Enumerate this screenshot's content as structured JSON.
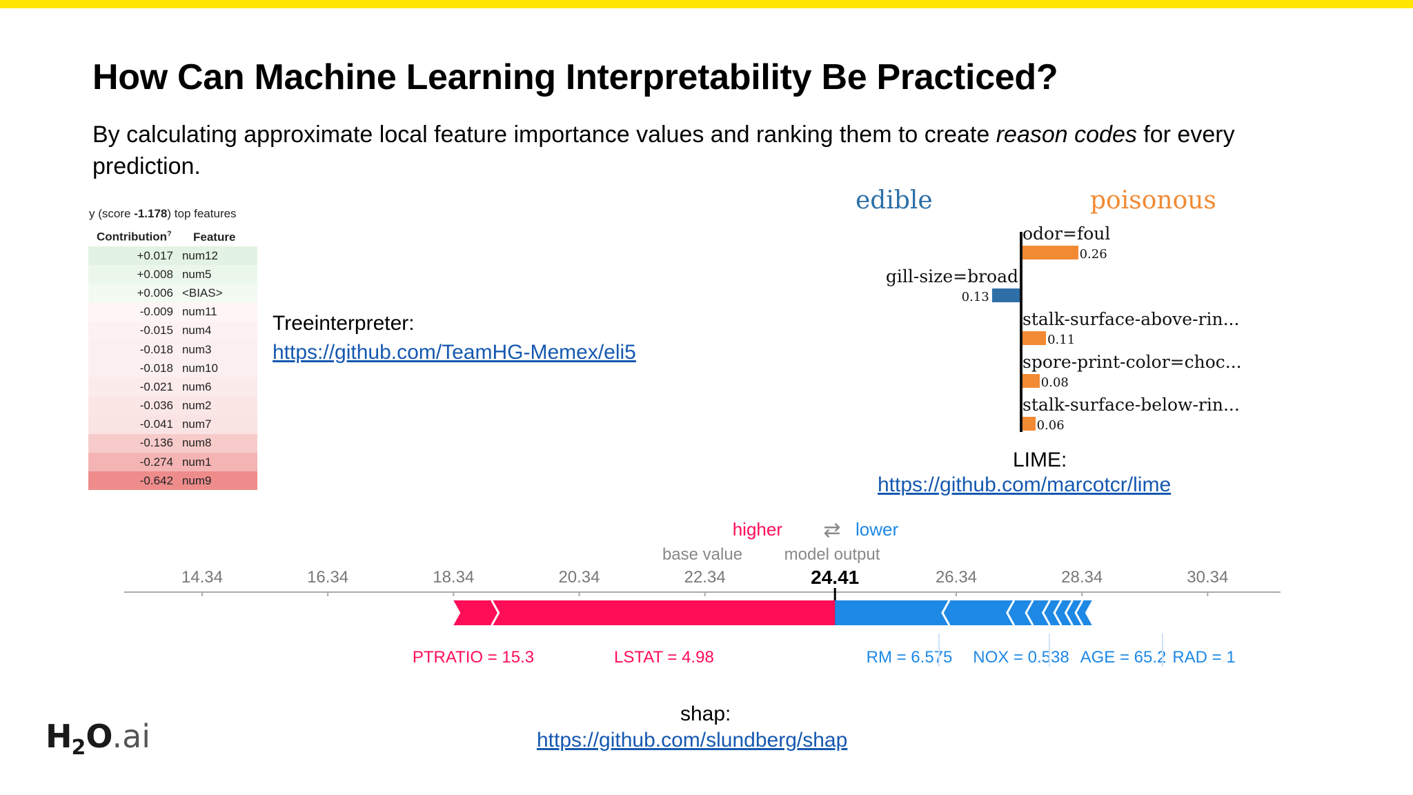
{
  "slide": {
    "title": "How Can Machine Learning Interpretability Be Practiced?",
    "subtitle_before": "By calculating approximate local feature importance values and ranking them to create ",
    "subtitle_em": "reason codes",
    "subtitle_after": " for every prediction.",
    "accent_color": "#ffe600"
  },
  "eli5": {
    "head_prefix": "y (score ",
    "head_score": "-1.178",
    "head_suffix": ") top features",
    "col_contribution": "Contribution",
    "col_contribution_sup": "?",
    "col_feature": "Feature",
    "rows": [
      {
        "value": "+0.017",
        "feature": "num12",
        "bg": "#e3f3e3"
      },
      {
        "value": "+0.008",
        "feature": "num5",
        "bg": "#ecf7ec"
      },
      {
        "value": "+0.006",
        "feature": "<BIAS>",
        "bg": "#f2faf2"
      },
      {
        "value": "-0.009",
        "feature": "num11",
        "bg": "#fef6f6"
      },
      {
        "value": "-0.015",
        "feature": "num4",
        "bg": "#fdf1f1"
      },
      {
        "value": "-0.018",
        "feature": "num3",
        "bg": "#fcefef"
      },
      {
        "value": "-0.018",
        "feature": "num10",
        "bg": "#fcefef"
      },
      {
        "value": "-0.021",
        "feature": "num6",
        "bg": "#fcebeb"
      },
      {
        "value": "-0.036",
        "feature": "num2",
        "bg": "#fbe6e6"
      },
      {
        "value": "-0.041",
        "feature": "num7",
        "bg": "#fae3e3"
      },
      {
        "value": "-0.136",
        "feature": "num8",
        "bg": "#f8cbcb"
      },
      {
        "value": "-0.274",
        "feature": "num1",
        "bg": "#f4b4b4"
      },
      {
        "value": "-0.642",
        "feature": "num9",
        "bg": "#ee8c8c"
      }
    ]
  },
  "treeinterpreter": {
    "label": "Treeinterpreter:",
    "link": "https://github.com/TeamHG-Memex/eli5"
  },
  "lime": {
    "label_edible": "edible",
    "label_poisonous": "poisonous",
    "color_edible": "#2e6fa8",
    "color_poisonous": "#f28a34",
    "features": [
      {
        "name": "odor=foul",
        "value": "0.26",
        "num": 0.26,
        "side": "poisonous"
      },
      {
        "name": "gill-size=broad",
        "value": "0.13",
        "num": 0.13,
        "side": "edible"
      },
      {
        "name": "stalk-surface-above-rin...",
        "value": "0.11",
        "num": 0.11,
        "side": "poisonous"
      },
      {
        "name": "spore-print-color=choc...",
        "value": "0.08",
        "num": 0.08,
        "side": "poisonous"
      },
      {
        "name": "stalk-surface-below-rin...",
        "value": "0.06",
        "num": 0.06,
        "side": "poisonous"
      }
    ],
    "caption": "LIME:",
    "link": "https://github.com/marcotcr/lime"
  },
  "shap": {
    "legend_higher": "higher",
    "legend_arrows": "⇄",
    "legend_lower": "lower",
    "base_value_label": "base value",
    "model_output_label": "model output",
    "output_value": "24.41",
    "base_value": 22.53,
    "output_num": 24.41,
    "ticks": [
      "14.34",
      "16.34",
      "18.34",
      "20.34",
      "22.34",
      "26.34",
      "28.34",
      "30.34"
    ],
    "tick_nums": [
      14.34,
      16.34,
      18.34,
      20.34,
      22.34,
      26.34,
      28.34,
      30.34
    ],
    "x_range": [
      13.1,
      31.5
    ],
    "positive_color": "#ff0d57",
    "negative_color": "#1e88e5",
    "positive_span": [
      18.34,
      24.41
    ],
    "negative_span": [
      24.41,
      28.5
    ],
    "features_pos": [
      {
        "label": "PTRATIO = 15.3",
        "start": 18.34,
        "end": 18.97
      },
      {
        "label": "LSTAT = 4.98",
        "start": 18.97,
        "end": 24.41
      }
    ],
    "features_neg": [
      {
        "label": "RM = 6.575",
        "start": 24.41,
        "end": 26.12
      },
      {
        "label": "NOX = 0.538",
        "start": 26.12,
        "end": 27.15
      },
      {
        "label": "AGE = 65.2",
        "start": 27.15,
        "end": 27.45
      },
      {
        "label": "RAD = 1",
        "start": 27.45,
        "end": 27.72
      },
      {
        "start": 27.72,
        "end": 27.9
      },
      {
        "start": 27.9,
        "end": 28.08
      },
      {
        "start": 28.08,
        "end": 28.24
      },
      {
        "start": 28.24,
        "end": 28.5
      }
    ],
    "caption": "shap:",
    "link": "https://github.com/slundberg/shap"
  },
  "logo": {
    "h": "H",
    "sub": "2",
    "o": "O",
    "ai": ".ai"
  }
}
